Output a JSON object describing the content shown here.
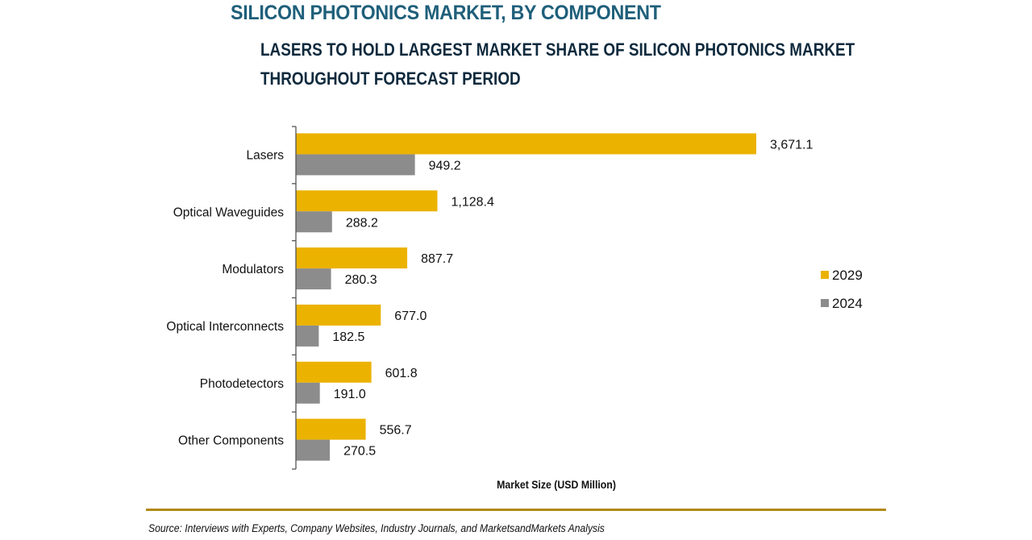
{
  "header": {
    "title": "SILICON PHOTONICS MARKET, BY COMPONENT",
    "subtitle_line1": "LASERS TO HOLD LARGEST MARKET SHARE OF SILICON PHOTONICS MARKET",
    "subtitle_line2": "THROUGHOUT FORECAST PERIOD"
  },
  "footer": {
    "source": "Source: Interviews with Experts, Company Websites, Industry Journals, and MarketsandMarkets Analysis"
  },
  "colors": {
    "2029": "#ebb200",
    "2024": "#8c8c8c",
    "rule": "#b08a10"
  },
  "chart_data": {
    "type": "bar",
    "orientation": "horizontal",
    "title": "SILICON PHOTONICS MARKET, BY COMPONENT",
    "subtitle": "LASERS TO HOLD LARGEST MARKET SHARE OF SILICON PHOTONICS MARKET THROUGHOUT FORECAST PERIOD",
    "xlabel": "Market Size (USD Million)",
    "ylabel": "",
    "categories": [
      "Lasers",
      "Optical Waveguides",
      "Modulators",
      "Optical Interconnects",
      "Photodetectors",
      "Other Components"
    ],
    "series": [
      {
        "name": "2029",
        "values": [
          3671.1,
          1128.4,
          887.7,
          677.0,
          601.8,
          556.7
        ],
        "labels": [
          "3,671.1",
          "1,128.4",
          "887.7",
          "677.0",
          "601.8",
          "556.7"
        ]
      },
      {
        "name": "2024",
        "values": [
          949.2,
          288.2,
          280.3,
          182.5,
          191.0,
          270.5
        ],
        "labels": [
          "949.2",
          "288.2",
          "280.3",
          "182.5",
          "191.0",
          "270.5"
        ]
      }
    ],
    "xlim": [
      0,
      3671.1
    ],
    "grid": false,
    "legend": "right",
    "source": "Source: Interviews with Experts, Company Websites, Industry Journals, and MarketsandMarkets Analysis"
  }
}
